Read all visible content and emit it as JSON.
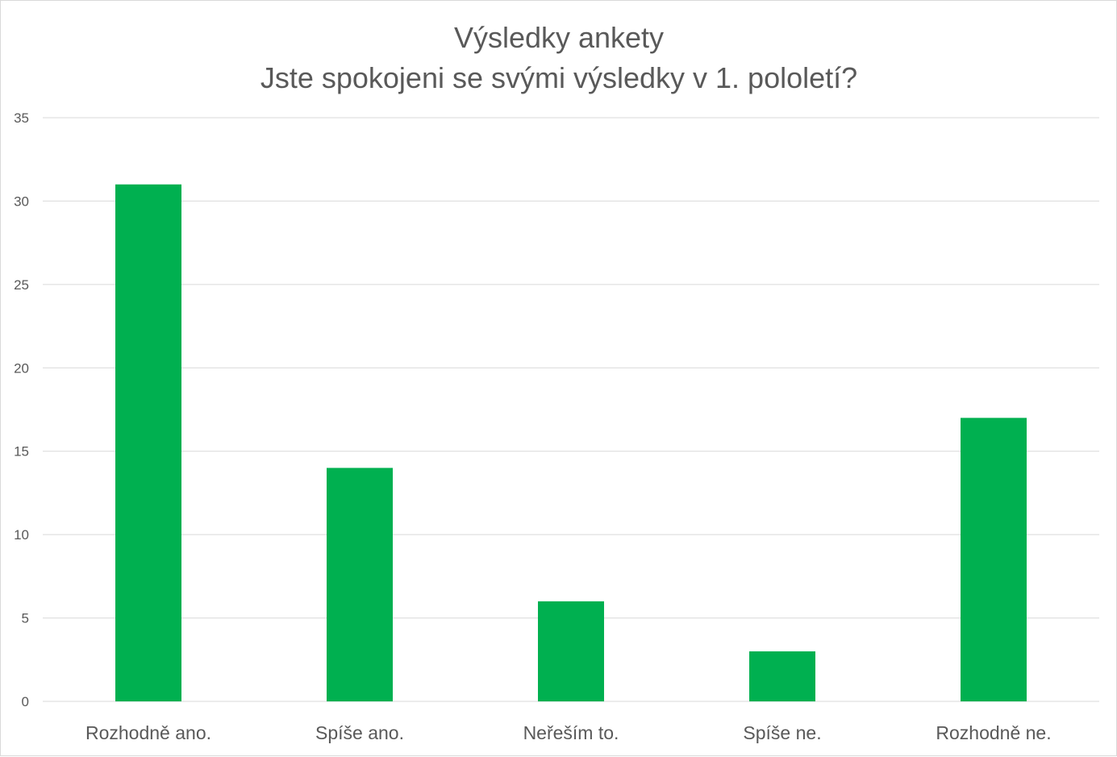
{
  "chart_data": {
    "type": "bar",
    "title": "Výsledky ankety",
    "subtitle": "Jste spokojeni se svými výsledky v 1. pololetí?",
    "categories": [
      "Rozhodně ano.",
      "Spíše ano.",
      "Neřeším to.",
      "Spíše ne.",
      "Rozhodně ne."
    ],
    "series": [
      {
        "values": [
          31,
          14,
          6,
          3,
          17
        ]
      }
    ],
    "ylim": [
      0,
      35
    ],
    "yticks": [
      0,
      5,
      10,
      15,
      20,
      25,
      30,
      35
    ],
    "xlabel": "",
    "ylabel": "",
    "grid": true,
    "legend": "none",
    "bar_color": "#00b050",
    "grid_color": "#d9d9d9",
    "text_color": "#595959"
  }
}
